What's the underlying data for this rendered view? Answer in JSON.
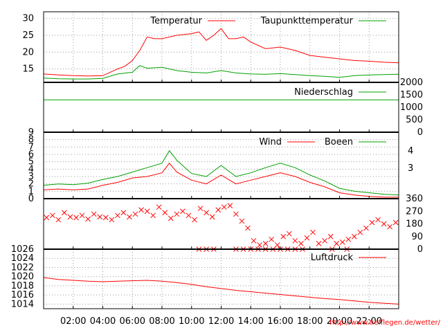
{
  "footer": {
    "url": "http://www.tiefflegen.de/wetter/"
  },
  "colors": {
    "temperature": "#ff0000",
    "dewpoint": "#00a000",
    "precip": "#00a000",
    "wind": "#ff0000",
    "gust": "#00a000",
    "winddir": "#ff0000",
    "pressure": "#ff0000",
    "grid": "#999999",
    "frame": "#000000"
  },
  "chart_data": [
    {
      "type": "line",
      "title": "",
      "xlabel": "",
      "ylabel": "",
      "x_range": [
        "00:00",
        "24:00"
      ],
      "x_ticks": [
        "02:00",
        "04:00",
        "06:00",
        "08:00",
        "10:00",
        "12:00",
        "14:00",
        "16:00",
        "18:00",
        "20:00",
        "22:00"
      ],
      "ylim": [
        11,
        32
      ],
      "y_ticks": [
        "15",
        "20",
        "25",
        "30"
      ],
      "grid": true,
      "legend_position": "top",
      "series": [
        {
          "name": "Temperatur",
          "x_hours": [
            0,
            1,
            2,
            3,
            4,
            4.5,
            5,
            5.5,
            6,
            6.5,
            7,
            7.5,
            8,
            9,
            10,
            10.5,
            11,
            11.5,
            12,
            12.5,
            13,
            13.5,
            14,
            15,
            16,
            17,
            18,
            19,
            20,
            21,
            22,
            23,
            24
          ],
          "values": [
            13.5,
            13.2,
            13.0,
            12.9,
            13.0,
            14.0,
            15.0,
            15.8,
            17.5,
            20.5,
            24.5,
            24.0,
            24.0,
            25.0,
            25.5,
            26.0,
            23.5,
            25.0,
            27.0,
            24.0,
            24.0,
            24.5,
            23.0,
            21.0,
            21.5,
            20.5,
            19.0,
            18.5,
            18.0,
            17.5,
            17.3,
            17.0,
            16.8
          ]
        },
        {
          "name": "Taupunkttemperatur",
          "x_hours": [
            0,
            1,
            2,
            3,
            4,
            5,
            6,
            6.5,
            7,
            8,
            9,
            10,
            11,
            12,
            13,
            14,
            15,
            16,
            17,
            18,
            19,
            20,
            21,
            22,
            23,
            24
          ],
          "values": [
            12.3,
            12.1,
            12.0,
            12.0,
            12.2,
            13.5,
            14.0,
            16.0,
            15.2,
            15.5,
            14.5,
            14.0,
            13.8,
            14.5,
            13.8,
            13.5,
            13.4,
            13.6,
            13.3,
            13.0,
            12.8,
            12.5,
            13.0,
            13.2,
            13.3,
            13.4
          ]
        }
      ]
    },
    {
      "type": "line",
      "title": "",
      "x_range": [
        "00:00",
        "24:00"
      ],
      "ylim": [
        0,
        2000
      ],
      "y_ticks": [
        "0",
        "500",
        "1000",
        "1500",
        "2000"
      ],
      "legend_position": "top-right",
      "series": [
        {
          "name": "Niederschlag",
          "x_hours": [
            0,
            24
          ],
          "values": [
            1300,
            1300
          ]
        }
      ]
    },
    {
      "type": "line",
      "title": "",
      "x_range": [
        "00:00",
        "24:00"
      ],
      "ylim": [
        0,
        9
      ],
      "y_ticks": [
        "0",
        "1",
        "2",
        "3",
        "4",
        "5",
        "6",
        "7",
        "8",
        "9"
      ],
      "y2_ticks": [
        "3",
        "4"
      ],
      "grid": true,
      "legend_position": "top-right",
      "series": [
        {
          "name": "Wind",
          "x_hours": [
            0,
            1,
            2,
            3,
            4,
            5,
            6,
            7,
            8,
            8.5,
            9,
            10,
            11,
            12,
            13,
            14,
            15,
            16,
            17,
            18,
            19,
            20,
            21,
            22,
            23,
            24
          ],
          "values": [
            1.2,
            1.3,
            1.2,
            1.3,
            1.8,
            2.2,
            2.8,
            3.0,
            3.5,
            4.8,
            3.6,
            2.5,
            2.0,
            3.2,
            2.0,
            2.5,
            3.0,
            3.5,
            3.0,
            2.2,
            1.6,
            0.8,
            0.5,
            0.3,
            0.2,
            0.2
          ]
        },
        {
          "name": "Boeen",
          "x_hours": [
            0,
            1,
            2,
            3,
            4,
            5,
            6,
            7,
            8,
            8.5,
            9,
            10,
            11,
            12,
            13,
            14,
            15,
            16,
            17,
            18,
            19,
            20,
            21,
            22,
            23,
            24
          ],
          "values": [
            1.8,
            2.0,
            1.9,
            2.1,
            2.6,
            3.0,
            3.6,
            4.2,
            4.8,
            6.5,
            5.2,
            3.4,
            3.0,
            4.5,
            3.0,
            3.5,
            4.2,
            4.8,
            4.2,
            3.2,
            2.4,
            1.4,
            1.0,
            0.8,
            0.6,
            0.5
          ]
        }
      ]
    },
    {
      "type": "scatter",
      "title": "",
      "x_range": [
        "00:00",
        "24:00"
      ],
      "ylim": [
        0,
        360
      ],
      "y_ticks": [
        "0",
        "90",
        "180",
        "270",
        "360"
      ],
      "series": [
        {
          "name": "",
          "marker": "x",
          "x_hours": [
            0.2,
            0.6,
            1.0,
            1.4,
            1.8,
            2.2,
            2.6,
            3.0,
            3.4,
            3.8,
            4.2,
            4.6,
            5.0,
            5.4,
            5.8,
            6.2,
            6.6,
            7.0,
            7.4,
            7.8,
            8.2,
            8.6,
            9.0,
            9.4,
            9.8,
            10.2,
            10.6,
            11.0,
            11.4,
            11.8,
            12.2,
            12.6,
            13.0,
            13.4,
            13.8,
            14.2,
            14.6,
            15.0,
            15.4,
            15.8,
            16.2,
            16.6,
            17.0,
            17.4,
            17.8,
            18.2,
            18.6,
            19.0,
            19.4,
            19.8,
            20.2,
            20.6,
            21.0,
            21.4,
            21.8,
            22.2,
            22.6,
            23.0,
            23.4,
            23.8
          ],
          "values": [
            225,
            240,
            210,
            260,
            230,
            225,
            240,
            215,
            250,
            230,
            225,
            210,
            240,
            260,
            230,
            250,
            280,
            270,
            240,
            300,
            260,
            220,
            250,
            270,
            240,
            210,
            290,
            260,
            230,
            280,
            300,
            310,
            250,
            200,
            150,
            60,
            30,
            40,
            70,
            30,
            90,
            110,
            60,
            40,
            80,
            120,
            40,
            60,
            90,
            40,
            50,
            70,
            90,
            120,
            150,
            190,
            210,
            180,
            160,
            190
          ]
        },
        {
          "name": "",
          "marker": "x",
          "x_hours": [
            10.5,
            11.0,
            11.5,
            13.0,
            13.5,
            14.0,
            14.5,
            15.0,
            15.5,
            16.0,
            16.5,
            17.0,
            17.5,
            19.5,
            20.5
          ],
          "values": [
            0,
            0,
            0,
            0,
            0,
            0,
            0,
            0,
            0,
            0,
            0,
            0,
            0,
            0,
            0
          ]
        }
      ]
    },
    {
      "type": "line",
      "title": "",
      "x_range": [
        "00:00",
        "24:00"
      ],
      "x_ticks": [
        "02:00",
        "04:00",
        "06:00",
        "08:00",
        "10:00",
        "12:00",
        "14:00",
        "16:00",
        "18:00",
        "20:00",
        "22:00"
      ],
      "ylim": [
        1013,
        1026
      ],
      "y_ticks": [
        "1014",
        "1016",
        "1018",
        "1020",
        "1022",
        "1024",
        "1026"
      ],
      "grid": true,
      "legend_position": "top-right",
      "series": [
        {
          "name": "Luftdruck",
          "x_hours": [
            0,
            1,
            2,
            3,
            4,
            5,
            6,
            7,
            8,
            9,
            10,
            11,
            12,
            13,
            14,
            15,
            16,
            17,
            18,
            19,
            20,
            21,
            22,
            23,
            24
          ],
          "values": [
            1019.8,
            1019.4,
            1019.2,
            1019.0,
            1018.9,
            1019.0,
            1019.1,
            1019.2,
            1019.0,
            1018.7,
            1018.3,
            1017.8,
            1017.4,
            1017.0,
            1016.7,
            1016.4,
            1016.1,
            1015.8,
            1015.5,
            1015.2,
            1015.0,
            1014.7,
            1014.4,
            1014.2,
            1014.0
          ]
        }
      ]
    }
  ]
}
